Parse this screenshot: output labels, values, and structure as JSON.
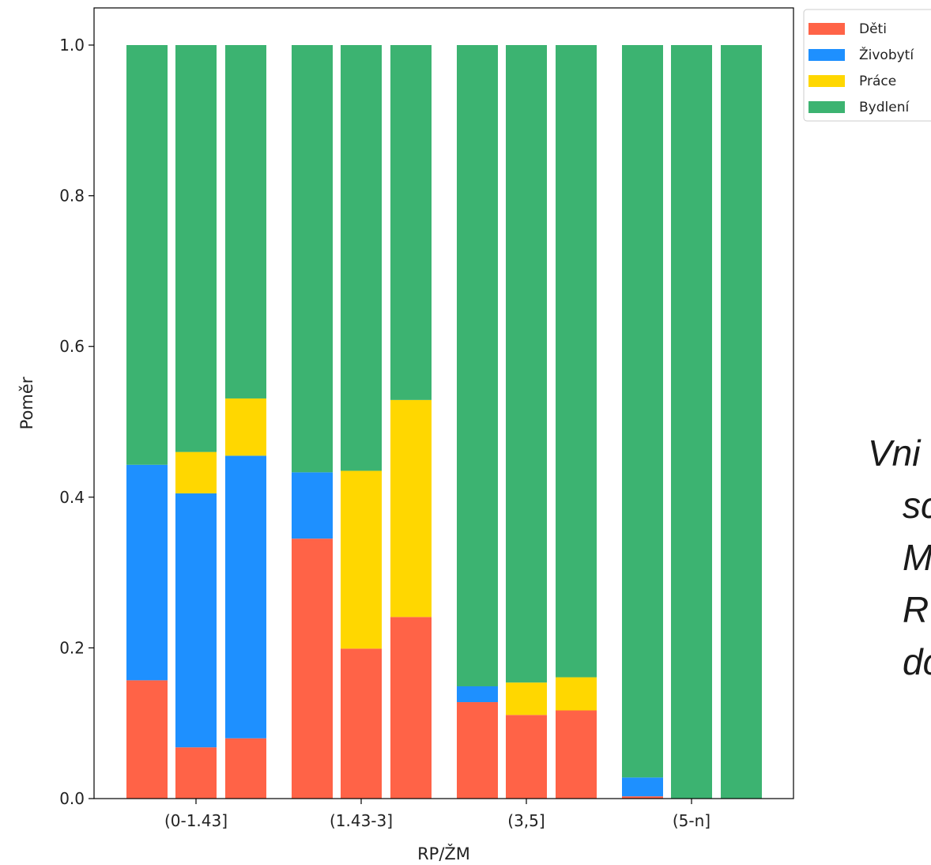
{
  "chart_data": {
    "type": "bar",
    "stacked": true,
    "xlabel": "RP/ŽM",
    "ylabel": "Poměr",
    "ylim": [
      0,
      1.05
    ],
    "yticks": [
      "0.0",
      "0.2",
      "0.4",
      "0.6",
      "0.8",
      "1.0"
    ],
    "groups": [
      "(0-1.43]",
      "(1.43-3]",
      "(3,5]",
      "(5-n]"
    ],
    "bars_per_group": 3,
    "legend_position": "upper-right-outside",
    "series": [
      {
        "name": "Děti",
        "color": "#FF6347",
        "values": [
          0.157,
          0.068,
          0.08,
          0.345,
          0.199,
          0.241,
          0.128,
          0.111,
          0.117,
          0.003,
          0.0,
          0.0
        ]
      },
      {
        "name": "Živobytí",
        "color": "#1E90FF",
        "values": [
          0.286,
          0.337,
          0.375,
          0.088,
          0.0,
          0.0,
          0.021,
          0.0,
          0.0,
          0.025,
          0.0,
          0.0
        ]
      },
      {
        "name": "Práce",
        "color": "#FFD700",
        "values": [
          0.0,
          0.055,
          0.076,
          0.0,
          0.236,
          0.288,
          0.0,
          0.043,
          0.044,
          0.0,
          0.0,
          0.0
        ]
      },
      {
        "name": "Bydlení",
        "color": "#3CB371",
        "values": [
          0.557,
          0.54,
          0.469,
          0.567,
          0.565,
          0.471,
          0.851,
          0.846,
          0.839,
          0.972,
          1.0,
          1.0
        ]
      }
    ]
  },
  "side_text": {
    "lines": [
      "Vni",
      "sc",
      "M",
      "R",
      "dc"
    ]
  }
}
